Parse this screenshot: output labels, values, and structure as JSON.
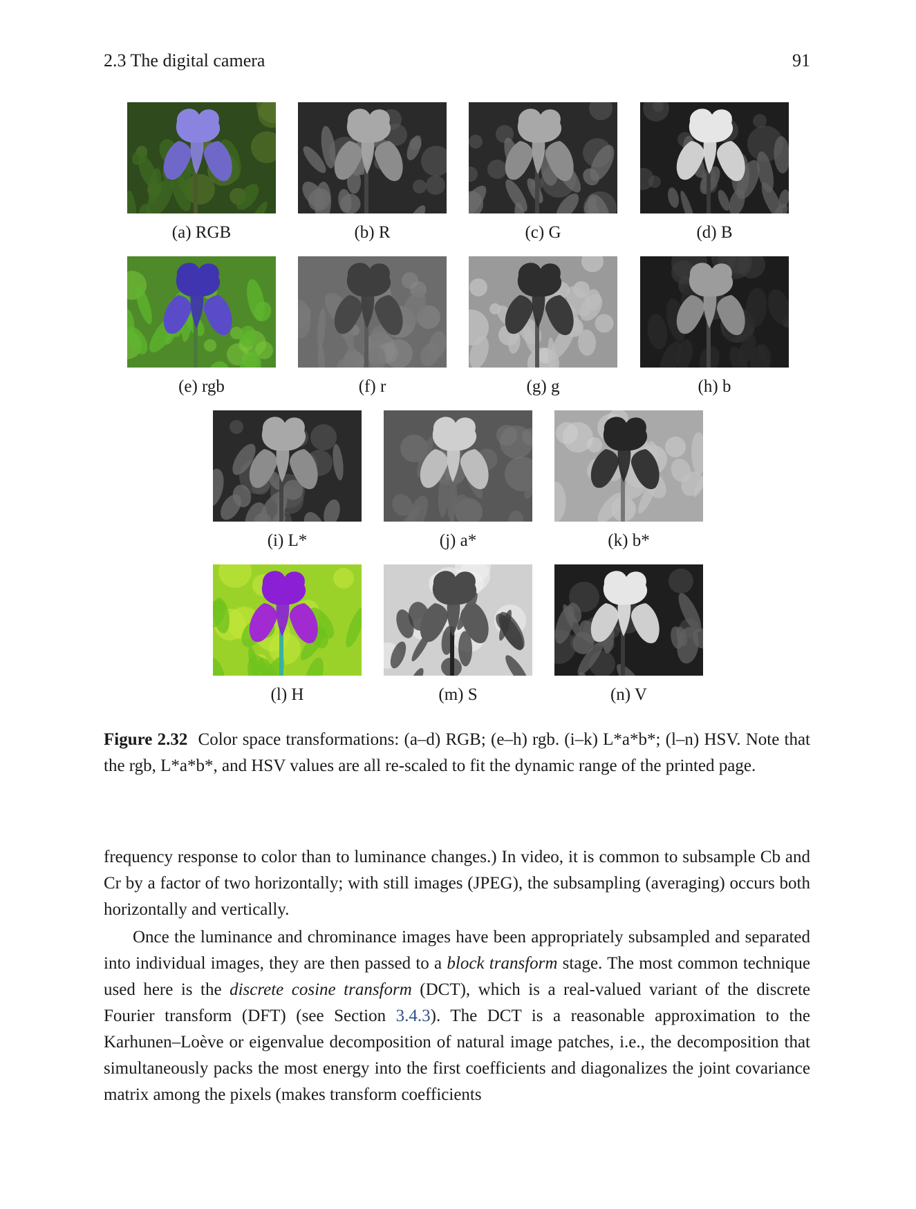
{
  "running_head": {
    "section": "2.3 The digital camera",
    "page_number": "91"
  },
  "figure": {
    "panels": [
      {
        "caption": "(a) RGB",
        "style": "rgb"
      },
      {
        "caption": "(b) R",
        "style": "gray-mid"
      },
      {
        "caption": "(c) G",
        "style": "gray-mid"
      },
      {
        "caption": "(d) B",
        "style": "gray-bright"
      },
      {
        "caption": "(e) rgb",
        "style": "rgb-chroma"
      },
      {
        "caption": "(f) r",
        "style": "gray-flat"
      },
      {
        "caption": "(g) g",
        "style": "gray-dark-flower"
      },
      {
        "caption": "(h) b",
        "style": "gray-light-flower"
      },
      {
        "caption": "(i) L*",
        "style": "gray-mid"
      },
      {
        "caption": "(j) a*",
        "style": "gray-soft-light"
      },
      {
        "caption": "(k) b*",
        "style": "gray-inverse"
      },
      {
        "caption": "(l) H",
        "style": "hue"
      },
      {
        "caption": "(m) S",
        "style": "gray-saturation"
      },
      {
        "caption": "(n) V",
        "style": "gray-bright"
      }
    ],
    "caption_label": "Figure 2.32",
    "caption_text": "Color space transformations: (a–d) RGB; (e–h) rgb. (i–k) L*a*b*; (l–n) HSV. Note that the rgb, L*a*b*, and HSV values are all re-scaled to fit the dynamic range of the printed page."
  },
  "body": {
    "p1": "frequency response to color than to luminance changes.) In video, it is common to subsample Cb and Cr by a factor of two horizontally; with still images (JPEG), the subsampling (averaging) occurs both horizontally and vertically.",
    "p2_a": "Once the luminance and chrominance images have been appropriately subsampled and separated into individual images, they are then passed to a ",
    "p2_em1": "block transform",
    "p2_b": " stage. The most common technique used here is the ",
    "p2_em2": "discrete cosine transform",
    "p2_c": " (DCT), which is a real-valued variant of the discrete Fourier transform (DFT) (see Section ",
    "p2_ref": "3.4.3",
    "p2_d": "). The DCT is a reasonable approximation to the Karhunen–Loève or eigenvalue decomposition of natural image patches, i.e., the decomposition that simultaneously packs the most energy into the first coefficients and diagonalizes the joint covariance matrix among the pixels (makes transform coefficients"
  },
  "colors": {
    "link": "#2f4f86"
  }
}
